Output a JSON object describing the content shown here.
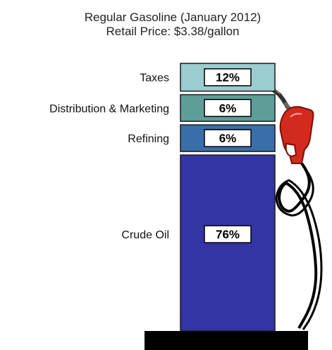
{
  "chart_data": {
    "type": "bar",
    "stacked": true,
    "title": "Regular Gasoline (January 2012)",
    "subtitle": "Retail Price: $3.38/gallon",
    "categories": [
      "Taxes",
      "Distribution & Marketing",
      "Refining",
      "Crude Oil"
    ],
    "values": [
      12,
      6,
      6,
      76
    ],
    "value_labels": [
      "12%",
      "6%",
      "6%",
      "76%"
    ],
    "unit": "%",
    "colors": [
      "#9bcdcf",
      "#5f9e98",
      "#3a6ea8",
      "#3434a4"
    ],
    "legend": "none",
    "grid": false
  },
  "decoration": {
    "illustration": "gas-pump-nozzle-icon",
    "nozzle_color": "#d42a1e",
    "base_color": "#000000"
  }
}
